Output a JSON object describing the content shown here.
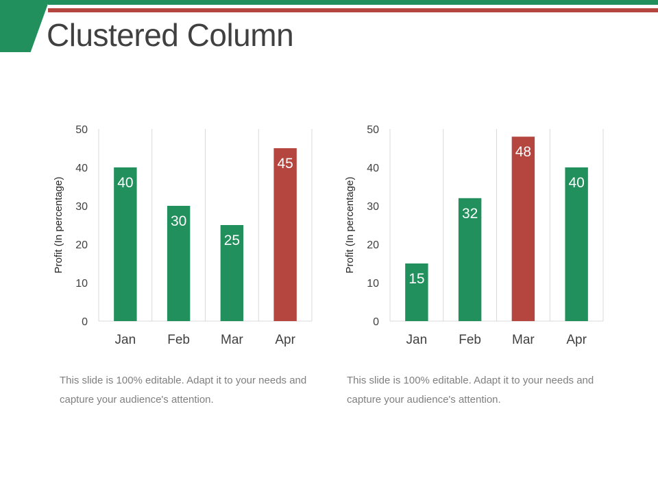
{
  "slide": {
    "title": "Clustered Column",
    "captions": [
      "This slide is 100% editable. Adapt it to your needs and capture your audience's attention.",
      "This slide is 100% editable. Adapt it to your needs and capture your audience's attention."
    ]
  },
  "colors": {
    "green": "#21905c",
    "red": "#b5453f",
    "accent_green": "#21905c",
    "accent_red": "#b5453f",
    "grid": "#d9d9d9",
    "tick_text": "#404040",
    "label_text": "#ffffff"
  },
  "chart_data": [
    {
      "type": "bar",
      "categories": [
        "Jan",
        "Feb",
        "Mar",
        "Apr"
      ],
      "values": [
        40,
        30,
        25,
        45
      ],
      "bar_colors": [
        "green",
        "green",
        "green",
        "red"
      ],
      "data_labels": true,
      "ylabel": "Profit  (In percentage)",
      "xlabel": "",
      "ylim": [
        0,
        50
      ],
      "yticks": [
        0,
        10,
        20,
        30,
        40,
        50
      ],
      "grid": "vertical"
    },
    {
      "type": "bar",
      "categories": [
        "Jan",
        "Feb",
        "Mar",
        "Apr"
      ],
      "values": [
        15,
        32,
        48,
        40
      ],
      "bar_colors": [
        "green",
        "green",
        "red",
        "green"
      ],
      "data_labels": true,
      "ylabel": "Profit  (In percentage)",
      "xlabel": "",
      "ylim": [
        0,
        50
      ],
      "yticks": [
        0,
        10,
        20,
        30,
        40,
        50
      ],
      "grid": "vertical"
    }
  ]
}
